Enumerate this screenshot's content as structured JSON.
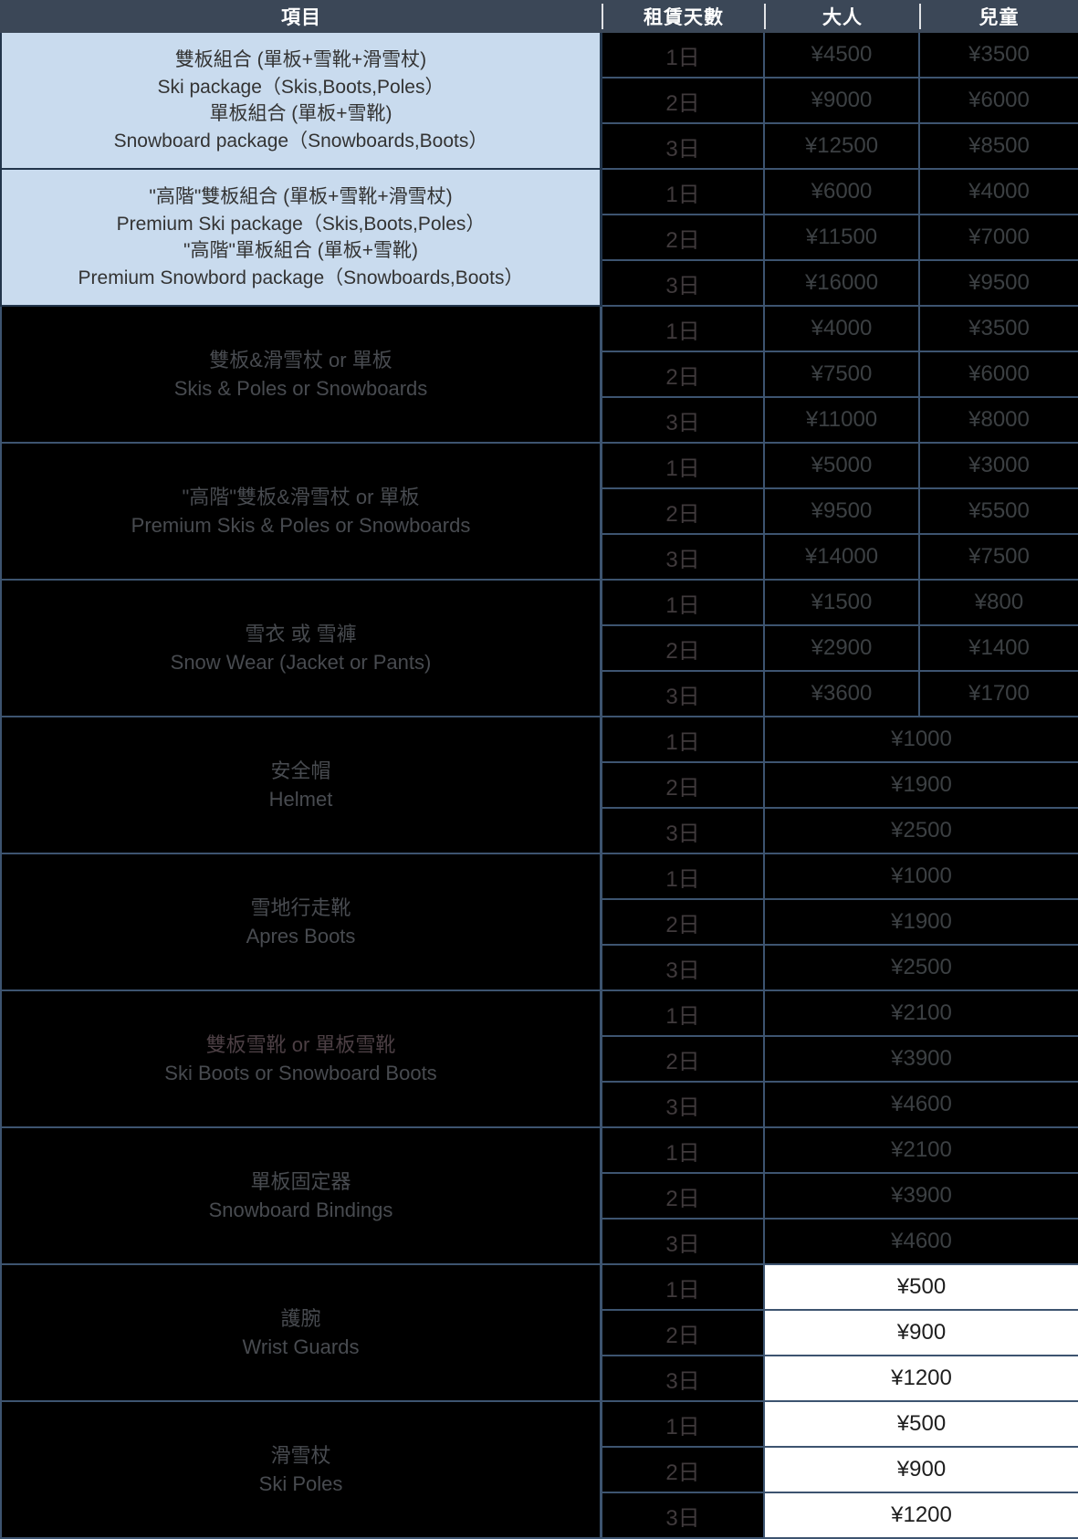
{
  "colors": {
    "header_bg": "#3b4757",
    "header_text": "#ffffff",
    "border": "#3d5470",
    "light_item_bg": "#c9dbee",
    "light_item_text": "#333333",
    "light_item_border": "#22354b",
    "dark_bg": "#000000",
    "dark_label_text": "#484b50",
    "price_text": "#3c4043",
    "day_text": "#403a3c",
    "white_cell_bg": "#ffffff",
    "white_cell_text": "#1e1e1e"
  },
  "table": {
    "headers": {
      "item": "項目",
      "days": "租賃天數",
      "adult": "大人",
      "child": "兒童"
    },
    "items": [
      {
        "style": "light",
        "label_lines": [
          "雙板組合 (單板+雪靴+滑雪杖)",
          "Ski package（Skis,Boots,Poles）",
          "單板組合 (單板+雪靴)",
          "Snowboard package（Snowboards,Boots）"
        ],
        "rows": [
          {
            "day": "1日",
            "adult": "¥4500",
            "child": "¥3500"
          },
          {
            "day": "2日",
            "adult": "¥9000",
            "child": "¥6000"
          },
          {
            "day": "3日",
            "adult": "¥12500",
            "child": "¥8500"
          }
        ]
      },
      {
        "style": "light",
        "label_lines": [
          "\"高階\"雙板組合 (單板+雪靴+滑雪杖)",
          "Premium Ski package（Skis,Boots,Poles）",
          "\"高階\"單板組合 (單板+雪靴)",
          "Premium Snowbord package（Snowboards,Boots）"
        ],
        "rows": [
          {
            "day": "1日",
            "adult": "¥6000",
            "child": "¥4000"
          },
          {
            "day": "2日",
            "adult": "¥11500",
            "child": "¥7000"
          },
          {
            "day": "3日",
            "adult": "¥16000",
            "child": "¥9500"
          }
        ]
      },
      {
        "style": "dark",
        "label_lines": [
          "雙板&滑雪杖 or 單板",
          "Skis & Poles or Snowboards"
        ],
        "rows": [
          {
            "day": "1日",
            "adult": "¥4000",
            "child": "¥3500"
          },
          {
            "day": "2日",
            "adult": "¥7500",
            "child": "¥6000"
          },
          {
            "day": "3日",
            "adult": "¥11000",
            "child": "¥8000"
          }
        ]
      },
      {
        "style": "dark",
        "label_lines": [
          "\"高階\"雙板&滑雪杖 or 單板",
          "Premium Skis & Poles or Snowboards"
        ],
        "rows": [
          {
            "day": "1日",
            "adult": "¥5000",
            "child": "¥3000"
          },
          {
            "day": "2日",
            "adult": "¥9500",
            "child": "¥5500"
          },
          {
            "day": "3日",
            "adult": "¥14000",
            "child": "¥7500"
          }
        ]
      },
      {
        "style": "dark",
        "label_lines": [
          "雪衣 或 雪褲",
          "Snow Wear (Jacket or Pants)"
        ],
        "rows": [
          {
            "day": "1日",
            "adult": "¥1500",
            "child": "¥800"
          },
          {
            "day": "2日",
            "adult": "¥2900",
            "child": "¥1400"
          },
          {
            "day": "3日",
            "adult": "¥3600",
            "child": "¥1700"
          }
        ]
      },
      {
        "style": "dark",
        "label_lines": [
          "安全帽",
          "Helmet"
        ],
        "price_style": "dark",
        "rows": [
          {
            "day": "1日",
            "price": "¥1000"
          },
          {
            "day": "2日",
            "price": "¥1900"
          },
          {
            "day": "3日",
            "price": "¥2500"
          }
        ]
      },
      {
        "style": "dark",
        "label_lines": [
          "雪地行走靴",
          "Apres Boots"
        ],
        "price_style": "dark",
        "rows": [
          {
            "day": "1日",
            "price": "¥1000"
          },
          {
            "day": "2日",
            "price": "¥1900"
          },
          {
            "day": "3日",
            "price": "¥2500"
          }
        ]
      },
      {
        "style": "dark",
        "zh_color": "#4c3f44",
        "label_lines": [
          "雙板雪靴 or 單板雪靴",
          "Ski Boots or Snowboard Boots"
        ],
        "price_style": "dark",
        "rows": [
          {
            "day": "1日",
            "price": "¥2100"
          },
          {
            "day": "2日",
            "price": "¥3900"
          },
          {
            "day": "3日",
            "price": "¥4600"
          }
        ]
      },
      {
        "style": "dark",
        "label_lines": [
          "單板固定器",
          "Snowboard Bindings"
        ],
        "price_style": "dark",
        "rows": [
          {
            "day": "1日",
            "price": "¥2100"
          },
          {
            "day": "2日",
            "price": "¥3900"
          },
          {
            "day": "3日",
            "price": "¥4600"
          }
        ]
      },
      {
        "style": "dark",
        "label_lines": [
          "護腕",
          "Wrist Guards"
        ],
        "price_style": "white",
        "rows": [
          {
            "day": "1日",
            "price": "¥500"
          },
          {
            "day": "2日",
            "price": "¥900"
          },
          {
            "day": "3日",
            "price": "¥1200"
          }
        ]
      },
      {
        "style": "dark",
        "label_lines": [
          "滑雪杖",
          "Ski Poles"
        ],
        "price_style": "white",
        "rows": [
          {
            "day": "1日",
            "price": "¥500"
          },
          {
            "day": "2日",
            "price": "¥900"
          },
          {
            "day": "3日",
            "price": "¥1200"
          }
        ]
      }
    ]
  }
}
